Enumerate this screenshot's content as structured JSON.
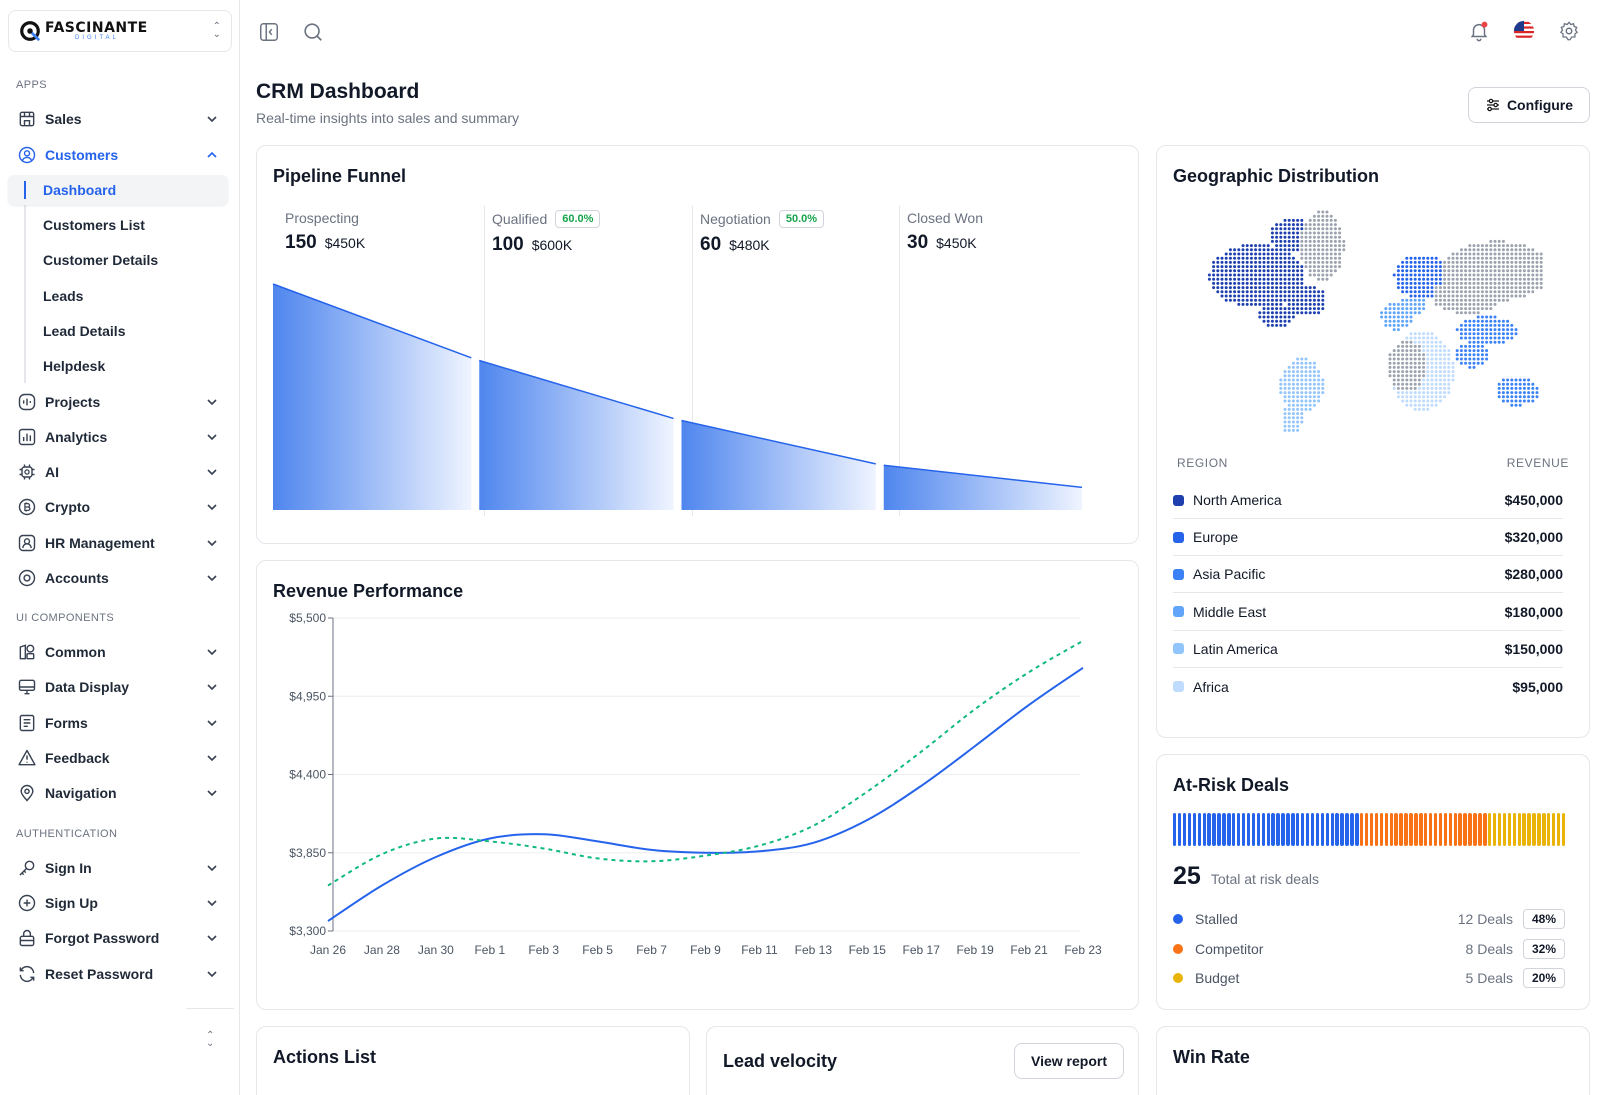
{
  "brand": {
    "name": "FASCINANTE",
    "sub": "DIGITAL"
  },
  "sidebar": {
    "sections": [
      "APPS",
      "UI COMPONENTS",
      "AUTHENTICATION"
    ],
    "apps": [
      {
        "label": "Sales",
        "icon": "store-icon"
      },
      {
        "label": "Customers",
        "icon": "user-circle-icon"
      },
      {
        "label": "Projects",
        "icon": "activity-square-icon"
      },
      {
        "label": "Analytics",
        "icon": "bar-chart-icon"
      },
      {
        "label": "AI",
        "icon": "chip-icon"
      },
      {
        "label": "Crypto",
        "icon": "bitcoin-icon"
      },
      {
        "label": "HR Management",
        "icon": "id-badge-icon"
      },
      {
        "label": "Accounts",
        "icon": "target-icon"
      }
    ],
    "customer_sub": [
      "Dashboard",
      "Customers List",
      "Customer Details",
      "Leads",
      "Lead Details",
      "Helpdesk"
    ],
    "ui": [
      {
        "label": "Common",
        "icon": "shapes-icon"
      },
      {
        "label": "Data Display",
        "icon": "monitor-icon"
      },
      {
        "label": "Forms",
        "icon": "form-icon"
      },
      {
        "label": "Feedback",
        "icon": "alert-triangle-icon"
      },
      {
        "label": "Navigation",
        "icon": "map-pin-icon"
      }
    ],
    "auth": [
      {
        "label": "Sign In",
        "icon": "key-icon"
      },
      {
        "label": "Sign Up",
        "icon": "plus-circle-icon"
      },
      {
        "label": "Forgot Password",
        "icon": "lock-icon"
      },
      {
        "label": "Reset Password",
        "icon": "refresh-icon"
      }
    ]
  },
  "header": {
    "title": "CRM Dashboard",
    "subtitle": "Real-time insights into sales and summary",
    "configure_label": "Configure"
  },
  "pipeline": {
    "title": "Pipeline Funnel",
    "stages": [
      {
        "name": "Prospecting",
        "count": "150",
        "amount": "$450K",
        "badge": ""
      },
      {
        "name": "Qualified",
        "count": "100",
        "amount": "$600K",
        "badge": "60.0%"
      },
      {
        "name": "Negotiation",
        "count": "60",
        "amount": "$480K",
        "badge": "50.0%"
      },
      {
        "name": "Closed Won",
        "count": "30",
        "amount": "$450K",
        "badge": ""
      }
    ]
  },
  "geo": {
    "title": "Geographic Distribution",
    "col_region": "REGION",
    "col_revenue": "REVENUE",
    "rows": [
      {
        "region": "North America",
        "revenue": "$450,000",
        "color": "#1e40af"
      },
      {
        "region": "Europe",
        "revenue": "$320,000",
        "color": "#2563eb"
      },
      {
        "region": "Asia Pacific",
        "revenue": "$280,000",
        "color": "#3b82f6"
      },
      {
        "region": "Middle East",
        "revenue": "$180,000",
        "color": "#60a5fa"
      },
      {
        "region": "Latin America",
        "revenue": "$150,000",
        "color": "#93c5fd"
      },
      {
        "region": "Africa",
        "revenue": "$95,000",
        "color": "#bfdbfe"
      }
    ]
  },
  "revenue": {
    "title": "Revenue Performance"
  },
  "chart_data": {
    "type": "line",
    "title": "Revenue Performance",
    "xlabel": "",
    "ylabel": "",
    "x": [
      "Jan 26",
      "Jan 28",
      "Jan 30",
      "Feb 1",
      "Feb 3",
      "Feb 5",
      "Feb 7",
      "Feb 9",
      "Feb 11",
      "Feb 13",
      "Feb 15",
      "Feb 17",
      "Feb 19",
      "Feb 21",
      "Feb 23"
    ],
    "y_ticks": [
      "$5,500",
      "$4,950",
      "$4,400",
      "$3,850",
      "$3,300"
    ],
    "ylim": [
      3300,
      5500
    ],
    "grid": true,
    "series": [
      {
        "style": "solid",
        "color": "#2563eb",
        "values": [
          3370,
          3620,
          3820,
          3950,
          3980,
          3930,
          3870,
          3850,
          3860,
          3920,
          4080,
          4320,
          4600,
          4890,
          5150
        ]
      },
      {
        "style": "dashed",
        "color": "#10b981",
        "values": [
          3620,
          3840,
          3950,
          3930,
          3880,
          3810,
          3790,
          3830,
          3900,
          4040,
          4280,
          4560,
          4860,
          5120,
          5340
        ]
      }
    ]
  },
  "risk": {
    "title": "At-Risk Deals",
    "total": "25",
    "total_label": "Total at risk deals",
    "bar_counts": {
      "stalled": 48,
      "competitor": 32,
      "budget": 20
    },
    "rows": [
      {
        "name": "Stalled",
        "deals": "12 Deals",
        "pct": "48%",
        "color": "#2563eb"
      },
      {
        "name": "Competitor",
        "deals": "8 Deals",
        "pct": "32%",
        "color": "#f97316"
      },
      {
        "name": "Budget",
        "deals": "5 Deals",
        "pct": "20%",
        "color": "#eab308"
      }
    ]
  },
  "bottom": {
    "actions_title": "Actions List",
    "lead_title": "Lead velocity",
    "view_report": "View report",
    "win_title": "Win Rate"
  }
}
